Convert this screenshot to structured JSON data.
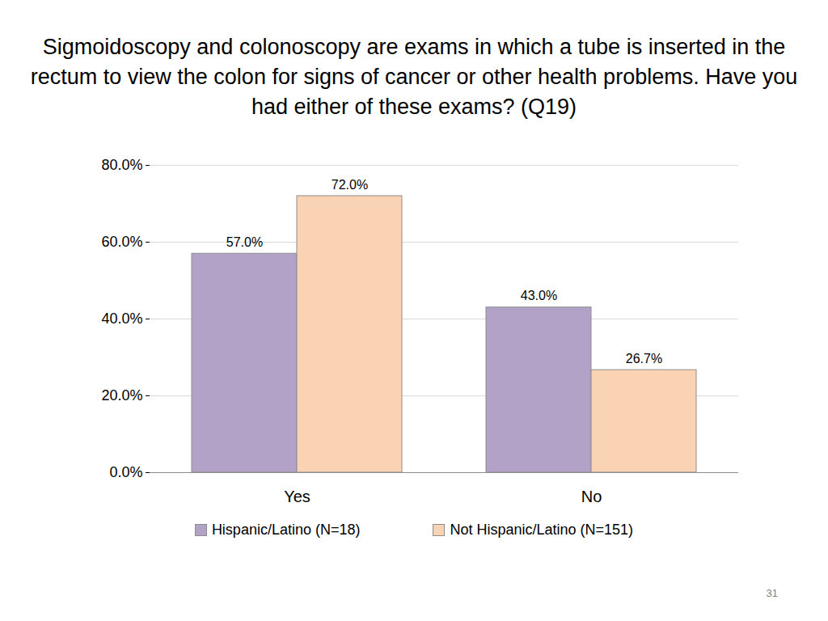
{
  "chart_data": {
    "type": "bar",
    "title": "Sigmoidoscopy and colonoscopy are exams in which a tube is inserted in the rectum to view the colon for signs of cancer or other health problems. Have you had either of these exams? (Q19)",
    "categories": [
      "Yes",
      "No"
    ],
    "series": [
      {
        "name": "Hispanic/Latino (N=18)",
        "color": "#b3a2c7",
        "values": [
          57,
          43
        ],
        "value_labels": [
          "57.0%",
          "43.0%"
        ]
      },
      {
        "name": "Not Hispanic/Latino (N=151)",
        "color": "#fad3b4",
        "values": [
          72,
          26.7
        ],
        "value_labels": [
          "72.0%",
          "26.7%"
        ]
      }
    ],
    "ylim": [
      0,
      80
    ],
    "yticks": [
      {
        "value": 0,
        "label": "0.0%"
      },
      {
        "value": 20,
        "label": "20.0%"
      },
      {
        "value": 40,
        "label": "40.0%"
      },
      {
        "value": 60,
        "label": "60.0%"
      },
      {
        "value": 80,
        "label": "80.0%"
      }
    ],
    "grid": true,
    "legend": "bottom",
    "data_labels": true,
    "footer": "31"
  }
}
